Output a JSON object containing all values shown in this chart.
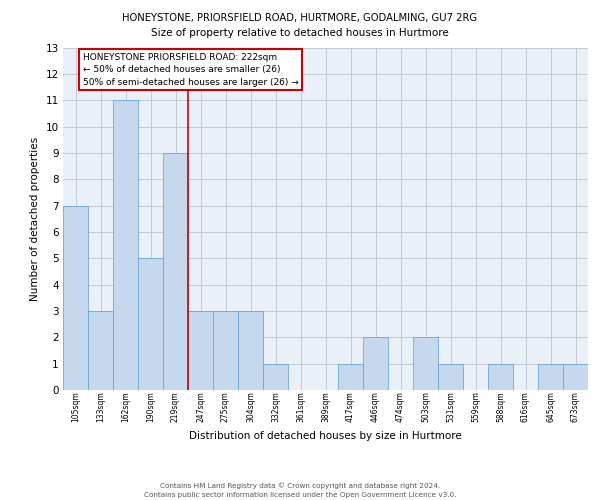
{
  "title1": "HONEYSTONE, PRIORSFIELD ROAD, HURTMORE, GODALMING, GU7 2RG",
  "title2": "Size of property relative to detached houses in Hurtmore",
  "xlabel": "Distribution of detached houses by size in Hurtmore",
  "ylabel": "Number of detached properties",
  "categories": [
    "105sqm",
    "133sqm",
    "162sqm",
    "190sqm",
    "219sqm",
    "247sqm",
    "275sqm",
    "304sqm",
    "332sqm",
    "361sqm",
    "389sqm",
    "417sqm",
    "446sqm",
    "474sqm",
    "503sqm",
    "531sqm",
    "559sqm",
    "588sqm",
    "616sqm",
    "645sqm",
    "673sqm"
  ],
  "values": [
    7,
    3,
    11,
    5,
    9,
    3,
    3,
    3,
    1,
    0,
    0,
    1,
    2,
    0,
    2,
    1,
    0,
    1,
    0,
    1,
    1
  ],
  "bar_color": "#c5d8ed",
  "bar_edge_color": "#5a9fd4",
  "grid_color": "#c0c8d8",
  "background_color": "#eaf0f8",
  "property_line_x": 4.5,
  "annotation_title": "HONEYSTONE PRIORSFIELD ROAD: 222sqm",
  "annotation_line1": "← 50% of detached houses are smaller (26)",
  "annotation_line2": "50% of semi-detached houses are larger (26) →",
  "red_line_color": "#cc0000",
  "annotation_box_color": "#ffffff",
  "annotation_box_edge": "#cc0000",
  "footer1": "Contains HM Land Registry data © Crown copyright and database right 2024.",
  "footer2": "Contains public sector information licensed under the Open Government Licence v3.0.",
  "ylim": [
    0,
    13
  ],
  "yticks": [
    0,
    1,
    2,
    3,
    4,
    5,
    6,
    7,
    8,
    9,
    10,
    11,
    12,
    13
  ]
}
